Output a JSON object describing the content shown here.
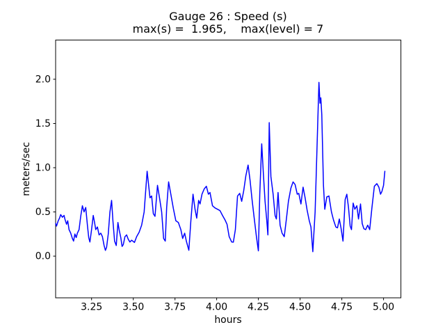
{
  "figure": {
    "background": "#ffffff",
    "title": "Gauge 26 : Speed (s)",
    "subtitle": "max(s) =  1.965,    max(level) = 7"
  },
  "chart_data": {
    "type": "line",
    "title": "Gauge 26 : Speed (s)",
    "subtitle": "max(s) =  1.965,    max(level) = 7",
    "xlabel": "hours",
    "ylabel": "meters/sec",
    "line_color": "#0000ff",
    "axis_color": "#000000",
    "grid": false,
    "legend": "none",
    "stats": {
      "max_s": 1.965,
      "max_level": 7
    },
    "xlim": [
      3.0346,
      5.1042
    ],
    "ylim": [
      -0.4714,
      2.4434
    ],
    "x_ticks": [
      {
        "value": 3.25,
        "label": "3.25"
      },
      {
        "value": 3.5,
        "label": "3.50"
      },
      {
        "value": 3.75,
        "label": "3.75"
      },
      {
        "value": 4.0,
        "label": "4.00"
      },
      {
        "value": 4.25,
        "label": "4.25"
      },
      {
        "value": 4.5,
        "label": "4.50"
      },
      {
        "value": 4.75,
        "label": "4.75"
      },
      {
        "value": 5.0,
        "label": "5.00"
      }
    ],
    "y_ticks": [
      {
        "value": 0.0,
        "label": "0.0"
      },
      {
        "value": 0.5,
        "label": "0.5"
      },
      {
        "value": 1.0,
        "label": "1.0"
      },
      {
        "value": 1.5,
        "label": "1.5"
      },
      {
        "value": 2.0,
        "label": "2.0"
      }
    ],
    "series": [
      {
        "name": "speed",
        "x": [
          3.035,
          3.04,
          3.05,
          3.058,
          3.065,
          3.075,
          3.085,
          3.09,
          3.1,
          3.107,
          3.115,
          3.125,
          3.135,
          3.142,
          3.15,
          3.158,
          3.165,
          3.175,
          3.185,
          3.195,
          3.205,
          3.215,
          3.225,
          3.233,
          3.24,
          3.25,
          3.26,
          3.268,
          3.275,
          3.285,
          3.295,
          3.305,
          3.315,
          3.325,
          3.333,
          3.34,
          3.35,
          3.36,
          3.37,
          3.378,
          3.388,
          3.398,
          3.408,
          3.415,
          3.425,
          3.433,
          3.44,
          3.45,
          3.46,
          3.47,
          3.48,
          3.49,
          3.507,
          3.52,
          3.535,
          3.55,
          3.565,
          3.583,
          3.6,
          3.61,
          3.62,
          3.63,
          3.645,
          3.658,
          3.67,
          3.682,
          3.692,
          3.7,
          3.712,
          3.725,
          3.74,
          3.755,
          3.77,
          3.785,
          3.796,
          3.808,
          3.818,
          3.833,
          3.845,
          3.858,
          3.87,
          3.88,
          3.892,
          3.9,
          3.912,
          3.925,
          3.938,
          3.95,
          3.96,
          3.975,
          3.99,
          4.005,
          4.02,
          4.035,
          4.05,
          4.062,
          4.075,
          4.09,
          4.1,
          4.112,
          4.125,
          4.138,
          4.15,
          4.162,
          4.175,
          4.188,
          4.2,
          4.212,
          4.225,
          4.238,
          4.25,
          4.258,
          4.27,
          4.28,
          4.29,
          4.3,
          4.307,
          4.315,
          4.325,
          4.338,
          4.35,
          4.358,
          4.368,
          4.38,
          4.392,
          4.405,
          4.418,
          4.43,
          4.445,
          4.458,
          4.47,
          4.483,
          4.492,
          4.505,
          4.518,
          4.53,
          4.542,
          4.555,
          4.565,
          4.576,
          4.59,
          4.605,
          4.613,
          4.619,
          4.624,
          4.63,
          4.64,
          4.648,
          4.66,
          4.673,
          4.688,
          4.7,
          4.714,
          4.724,
          4.735,
          4.745,
          4.757,
          4.77,
          4.78,
          4.79,
          4.8,
          4.808,
          4.818,
          4.828,
          4.84,
          4.85,
          4.862,
          4.872,
          4.882,
          4.893,
          4.905,
          4.917,
          4.93,
          4.945,
          4.96,
          4.972,
          4.982,
          4.99,
          5.0,
          5.008
        ],
        "y": [
          0.37,
          0.34,
          0.4,
          0.43,
          0.47,
          0.44,
          0.46,
          0.42,
          0.36,
          0.4,
          0.3,
          0.26,
          0.2,
          0.17,
          0.25,
          0.21,
          0.26,
          0.3,
          0.45,
          0.57,
          0.5,
          0.55,
          0.35,
          0.21,
          0.16,
          0.3,
          0.46,
          0.38,
          0.3,
          0.33,
          0.24,
          0.26,
          0.22,
          0.12,
          0.065,
          0.1,
          0.25,
          0.5,
          0.63,
          0.4,
          0.17,
          0.12,
          0.38,
          0.3,
          0.21,
          0.11,
          0.13,
          0.22,
          0.24,
          0.19,
          0.16,
          0.18,
          0.155,
          0.22,
          0.27,
          0.35,
          0.5,
          0.96,
          0.66,
          0.68,
          0.48,
          0.45,
          0.8,
          0.65,
          0.5,
          0.2,
          0.17,
          0.55,
          0.84,
          0.7,
          0.54,
          0.4,
          0.38,
          0.3,
          0.2,
          0.26,
          0.17,
          0.066,
          0.4,
          0.7,
          0.53,
          0.43,
          0.63,
          0.59,
          0.7,
          0.76,
          0.79,
          0.7,
          0.72,
          0.57,
          0.545,
          0.53,
          0.515,
          0.46,
          0.41,
          0.36,
          0.22,
          0.16,
          0.158,
          0.3,
          0.68,
          0.71,
          0.62,
          0.74,
          0.91,
          1.03,
          0.86,
          0.64,
          0.43,
          0.22,
          0.06,
          0.7,
          1.27,
          0.93,
          0.62,
          0.41,
          0.24,
          1.51,
          0.9,
          0.7,
          0.46,
          0.42,
          0.72,
          0.35,
          0.26,
          0.22,
          0.42,
          0.62,
          0.77,
          0.84,
          0.81,
          0.7,
          0.71,
          0.59,
          0.78,
          0.66,
          0.52,
          0.4,
          0.33,
          0.05,
          0.5,
          1.46,
          1.965,
          1.73,
          1.79,
          1.6,
          0.8,
          0.53,
          0.67,
          0.68,
          0.5,
          0.41,
          0.33,
          0.32,
          0.42,
          0.32,
          0.17,
          0.64,
          0.7,
          0.55,
          0.34,
          0.3,
          0.6,
          0.53,
          0.57,
          0.42,
          0.59,
          0.37,
          0.31,
          0.3,
          0.35,
          0.3,
          0.54,
          0.79,
          0.82,
          0.78,
          0.7,
          0.73,
          0.8,
          0.96
        ]
      }
    ]
  }
}
